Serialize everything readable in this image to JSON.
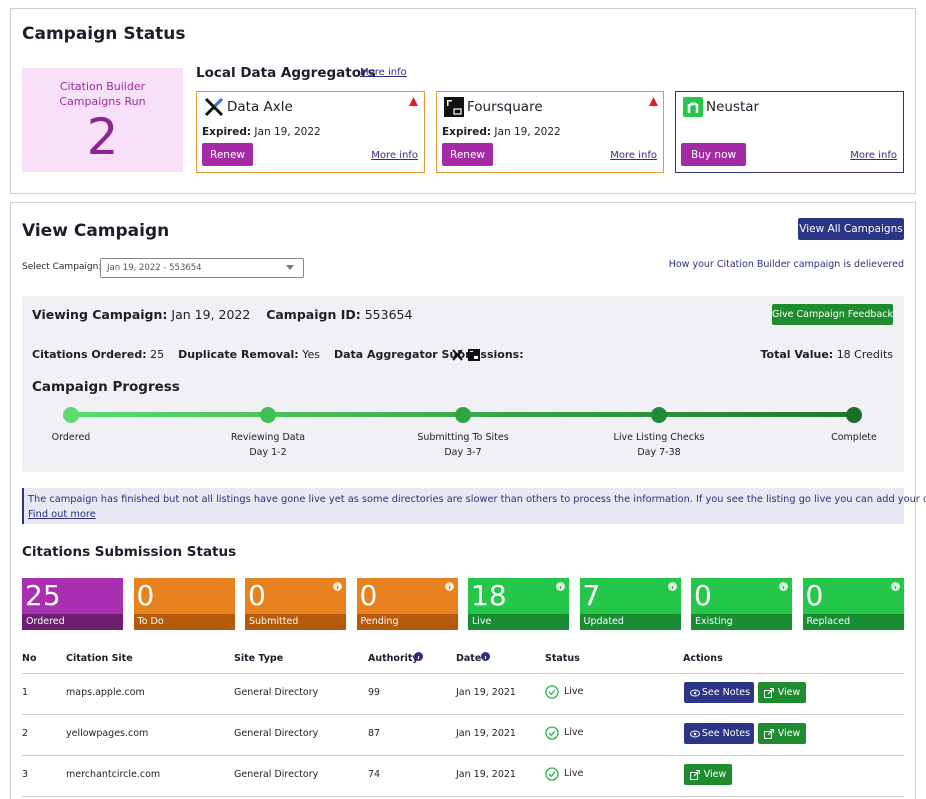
{
  "campaign_status": {
    "title": "Campaign Status",
    "runs_label": "Citation Builder Campaigns Run",
    "runs_count": 2
  },
  "aggregators": {
    "title": "Local Data Aggregators",
    "more_info": "More info",
    "cards": [
      {
        "name": "Data Axle",
        "expired_label": "Expired:",
        "expired_date": "Jan 19, 2022",
        "button": "Renew",
        "more_info": "More info",
        "color": "#e39a33"
      },
      {
        "name": "Foursquare",
        "expired_label": "Expired:",
        "expired_date": "Jan 19, 2022",
        "button": "Renew",
        "more_info": "More info",
        "color": "#e39a33"
      },
      {
        "name": "Neustar",
        "button": "Buy now",
        "more_info": "More info",
        "color": "#2e3180"
      }
    ]
  },
  "view_campaign": {
    "title": "View Campaign",
    "all_button": "View All Campaigns",
    "select_label": "Select Campaign:",
    "select_value": "Jan 19, 2022 - 553654",
    "help_link": "How your Citation Builder campaign is delievered"
  },
  "details": {
    "viewing_label": "Viewing Campaign:",
    "viewing_value": "Jan 19, 2022",
    "id_label": "Campaign ID:",
    "id_value": "553654",
    "feedback_button": "Give Campaign Feedback",
    "ordered_label": "Citations Ordered:",
    "ordered_value": "25",
    "duplicate_label": "Duplicate Removal:",
    "duplicate_value": "Yes",
    "submissions_label": "Data Aggregator Submissions:",
    "total_label": "Total Value:",
    "total_value": "18 Credits"
  },
  "progress": {
    "title": "Campaign Progress",
    "steps": [
      {
        "label": "Ordered"
      },
      {
        "label": "Reviewing Data",
        "days": "Day 1-2"
      },
      {
        "label": "Submitting To Sites",
        "days": "Day 3-7"
      },
      {
        "label": "Live Listing Checks",
        "days": "Day 7-38"
      },
      {
        "label": "Complete"
      }
    ]
  },
  "notice": {
    "text": "The campaign has finished but not all listings have gone live yet as some directories are slower than others to process the information. If you see the listing go live you can add your own link below.",
    "link": "Find out more"
  },
  "submission_status": {
    "title": "Citations Submission Status",
    "stats": [
      {
        "value": "25",
        "label": "Ordered",
        "color": "#a82fb0",
        "dark": "#6c1f70"
      },
      {
        "value": "0",
        "label": "To Do",
        "color": "#e8821e",
        "dark": "#b65a0c"
      },
      {
        "value": "0",
        "label": "Submitted",
        "color": "#e8821e",
        "dark": "#b65a0c"
      },
      {
        "value": "0",
        "label": "Pending",
        "color": "#e8821e",
        "dark": "#b65a0c"
      },
      {
        "value": "18",
        "label": "Live",
        "color": "#23c84a",
        "dark": "#198c34"
      },
      {
        "value": "7",
        "label": "Updated",
        "color": "#23c84a",
        "dark": "#198c34"
      },
      {
        "value": "0",
        "label": "Existing",
        "color": "#23c84a",
        "dark": "#198c34"
      },
      {
        "value": "0",
        "label": "Replaced",
        "color": "#23c84a",
        "dark": "#198c34"
      }
    ]
  },
  "table": {
    "headers": [
      "No",
      "Citation Site",
      "Site Type",
      "Authority",
      "Date",
      "Status",
      "Actions"
    ],
    "rows": [
      {
        "no": "1",
        "site": "maps.apple.com",
        "type": "General Directory",
        "authority": "99",
        "date": "Jan 19, 2021",
        "status": "Live",
        "actions": [
          "See Notes",
          "View"
        ]
      },
      {
        "no": "2",
        "site": "yellowpages.com",
        "type": "General Directory",
        "authority": "87",
        "date": "Jan 19, 2021",
        "status": "Live",
        "actions": [
          "See Notes",
          "View"
        ]
      },
      {
        "no": "3",
        "site": "merchantcircle.com",
        "type": "General Directory",
        "authority": "74",
        "date": "Jan 19, 2021",
        "status": "Live",
        "actions": [
          "View"
        ]
      }
    ]
  }
}
